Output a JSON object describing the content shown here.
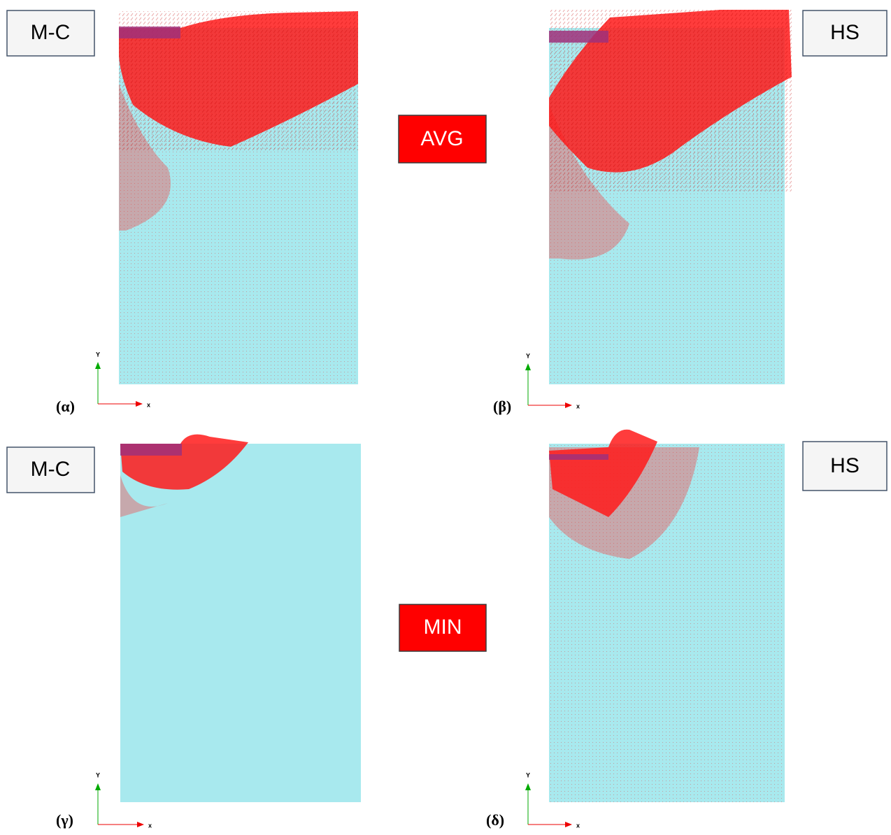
{
  "panels": [
    {
      "label": "(α)",
      "model": "M-C"
    },
    {
      "label": "(β)",
      "model": "HS"
    },
    {
      "label": "(γ)",
      "model": "M-C"
    },
    {
      "label": "(δ)",
      "model": "HS"
    }
  ],
  "rows": [
    {
      "label": "AVG"
    },
    {
      "label": "MIN"
    }
  ],
  "axes": {
    "y": "Y",
    "x": "x"
  }
}
